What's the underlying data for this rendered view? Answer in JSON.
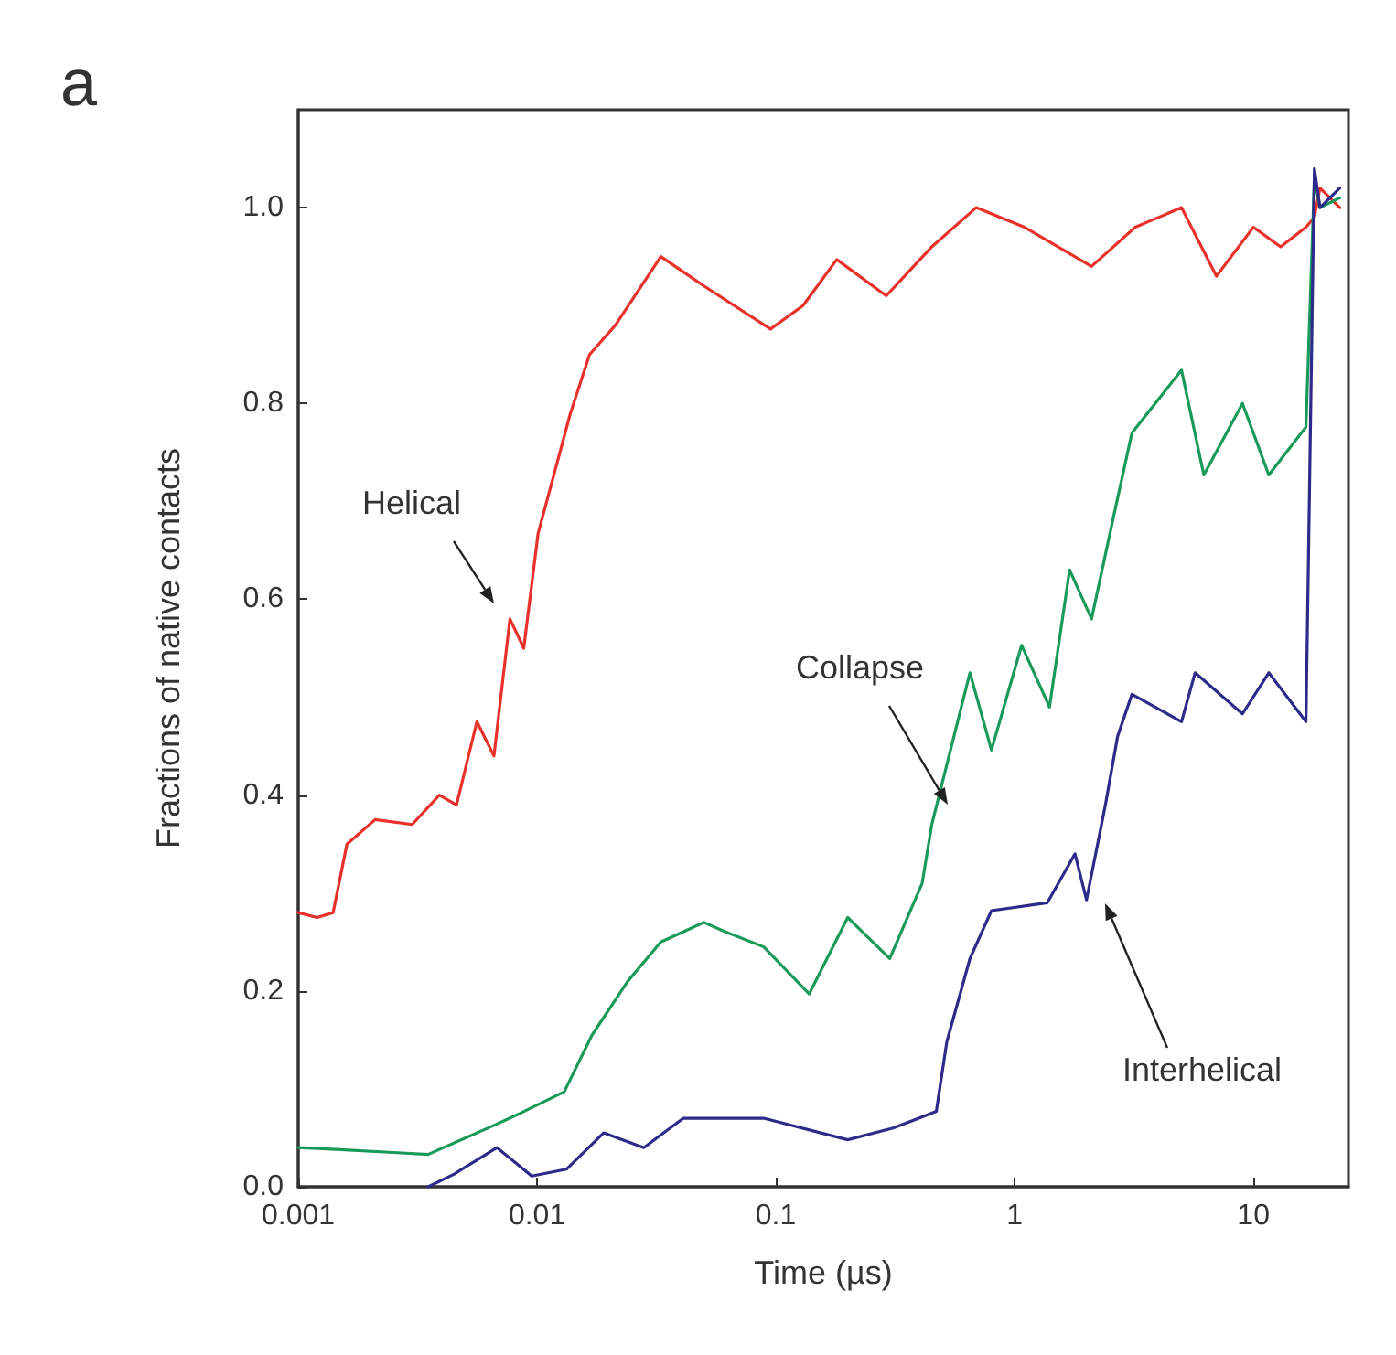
{
  "chart_data": {
    "type": "line",
    "title": "a",
    "xlabel": "Time (µs)",
    "ylabel": "Fractions of native contacts",
    "log": "x",
    "xlim": [
      0.001,
      25
    ],
    "xticks": [
      0.001,
      0.01,
      0.1,
      1,
      10
    ],
    "ylim": [
      0,
      1.1
    ],
    "yticks": [
      {
        "value": 0,
        "label": "0.0"
      },
      {
        "value": 0.2,
        "label": "0.2"
      },
      {
        "value": 0.4,
        "label": "0.4"
      },
      {
        "value": 0.6,
        "label": "0.6"
      },
      {
        "value": 0.8,
        "label": "0.8"
      },
      {
        "value": 1,
        "label": "1.0"
      }
    ],
    "grid": false,
    "marker": "none",
    "line_style": "solid",
    "series": [
      {
        "color": "#e8312a",
        "x": [
          0.001,
          0.0012,
          0.0014,
          0.0016,
          0.0021,
          0.003,
          0.0039,
          0.0046,
          0.0056,
          0.0066,
          0.0077,
          0.0088,
          0.0101,
          0.0138,
          0.0166,
          0.0213,
          0.033,
          0.05,
          0.095,
          0.13,
          0.18,
          0.29,
          0.45,
          0.69,
          1.1,
          2.1,
          3.2,
          5.0,
          7.0,
          10,
          13,
          16.6,
          18,
          19,
          23
        ],
        "values": [
          0.28,
          0.275,
          0.28,
          0.35,
          0.375,
          0.37,
          0.4,
          0.39,
          0.475,
          0.44,
          0.58,
          0.55,
          0.667,
          0.79,
          0.85,
          0.88,
          0.95,
          0.92,
          0.876,
          0.9,
          0.947,
          0.91,
          0.96,
          1.0,
          0.98,
          0.94,
          0.98,
          1.0,
          0.93,
          0.98,
          0.96,
          0.98,
          0.99,
          1.02,
          1.0
        ]
      },
      {
        "color": "#1a9a5a",
        "x": [
          0.001,
          0.0015,
          0.0025,
          0.0035,
          0.0065,
          0.0085,
          0.013,
          0.017,
          0.024,
          0.033,
          0.05,
          0.062,
          0.089,
          0.138,
          0.2,
          0.3,
          0.41,
          0.45,
          0.65,
          0.8,
          1.07,
          1.4,
          1.7,
          2.1,
          2.6,
          3.1,
          5.0,
          6.2,
          9.0,
          11.6,
          16.6,
          18,
          19,
          23
        ],
        "values": [
          0.04,
          0.038,
          0.035,
          0.033,
          0.062,
          0.075,
          0.097,
          0.155,
          0.21,
          0.25,
          0.27,
          0.26,
          0.245,
          0.197,
          0.275,
          0.233,
          0.31,
          0.37,
          0.525,
          0.446,
          0.553,
          0.49,
          0.63,
          0.58,
          0.685,
          0.77,
          0.834,
          0.727,
          0.8,
          0.727,
          0.776,
          1.03,
          1.0,
          1.01
        ]
      },
      {
        "color": "#2e2a8a",
        "x": [
          0.0035,
          0.0045,
          0.0068,
          0.0095,
          0.0133,
          0.019,
          0.028,
          0.041,
          0.06,
          0.089,
          0.2,
          0.31,
          0.47,
          0.52,
          0.65,
          0.8,
          1.37,
          1.79,
          2.0,
          2.4,
          2.7,
          3.1,
          5.0,
          5.7,
          9.0,
          11.6,
          16.6,
          18,
          19,
          23
        ],
        "values": [
          0.0,
          0.013,
          0.04,
          0.011,
          0.018,
          0.055,
          0.04,
          0.07,
          0.07,
          0.07,
          0.048,
          0.06,
          0.077,
          0.148,
          0.233,
          0.282,
          0.29,
          0.34,
          0.293,
          0.39,
          0.46,
          0.503,
          0.475,
          0.525,
          0.483,
          0.525,
          0.475,
          1.04,
          1.0,
          1.02
        ]
      }
    ],
    "annotations": [
      "Helical",
      "Collapse",
      "Interhelical"
    ]
  }
}
